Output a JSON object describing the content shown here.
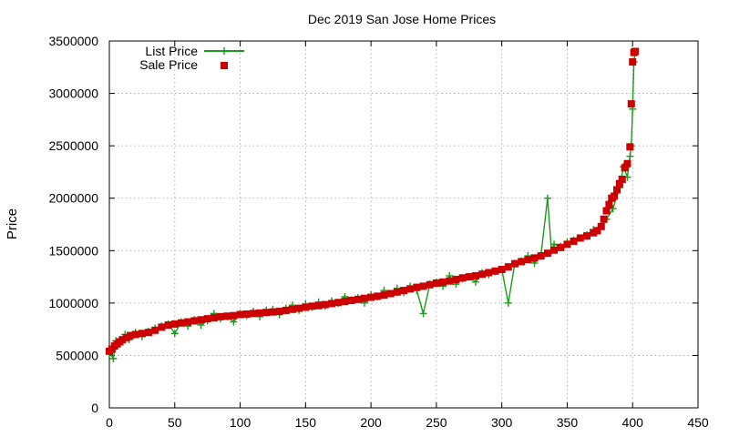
{
  "chart_data": {
    "type": "line",
    "title": "Dec 2019 San Jose Home Prices",
    "xlabel": "",
    "ylabel": "Price",
    "xlim": [
      0,
      450
    ],
    "ylim": [
      0,
      3500000
    ],
    "x_ticks": [
      0,
      50,
      100,
      150,
      200,
      250,
      300,
      350,
      400,
      450
    ],
    "y_ticks": [
      0,
      500000,
      1000000,
      1500000,
      2000000,
      2500000,
      3000000,
      3500000
    ],
    "grid": true,
    "legend_position": "top-left",
    "colors": {
      "list_price": "#1a9b1a",
      "sale_price": "#cc0000"
    },
    "series": [
      {
        "name": "List Price",
        "style": "line-with-plus-markers",
        "x": [
          0,
          3,
          5,
          8,
          12,
          15,
          20,
          25,
          30,
          35,
          40,
          45,
          50,
          55,
          60,
          65,
          70,
          75,
          80,
          85,
          90,
          95,
          100,
          105,
          110,
          115,
          120,
          125,
          130,
          135,
          140,
          145,
          150,
          155,
          160,
          165,
          170,
          175,
          180,
          185,
          190,
          195,
          200,
          205,
          210,
          215,
          220,
          225,
          230,
          235,
          240,
          245,
          250,
          255,
          260,
          265,
          270,
          275,
          280,
          285,
          290,
          295,
          300,
          305,
          310,
          315,
          320,
          325,
          330,
          335,
          338,
          340,
          345,
          350,
          355,
          360,
          365,
          370,
          375,
          380,
          385,
          390,
          393,
          396,
          398,
          399,
          400,
          401,
          402
        ],
        "values": [
          530000,
          470000,
          640000,
          620000,
          700000,
          650000,
          720000,
          680000,
          730000,
          760000,
          780000,
          800000,
          710000,
          820000,
          780000,
          840000,
          790000,
          830000,
          900000,
          850000,
          870000,
          820000,
          900000,
          880000,
          920000,
          870000,
          930000,
          940000,
          890000,
          950000,
          980000,
          930000,
          990000,
          960000,
          1010000,
          970000,
          1020000,
          1000000,
          1060000,
          1030000,
          1050000,
          1000000,
          1080000,
          1060000,
          1120000,
          1090000,
          1140000,
          1100000,
          1160000,
          1120000,
          900000,
          1180000,
          1200000,
          1160000,
          1260000,
          1180000,
          1230000,
          1250000,
          1200000,
          1290000,
          1270000,
          1300000,
          1320000,
          1000000,
          1380000,
          1400000,
          1450000,
          1380000,
          1460000,
          2000000,
          1500000,
          1560000,
          1540000,
          1580000,
          1600000,
          1620000,
          1650000,
          1700000,
          1720000,
          1800000,
          1900000,
          2100000,
          2300000,
          2200000,
          2400000,
          2500000,
          2850000,
          3300000,
          3400000
        ]
      },
      {
        "name": "Sale Price",
        "style": "square-markers",
        "x": [
          0,
          2,
          4,
          6,
          8,
          10,
          13,
          16,
          20,
          25,
          30,
          35,
          40,
          45,
          50,
          55,
          60,
          65,
          70,
          75,
          80,
          85,
          90,
          95,
          100,
          105,
          110,
          115,
          120,
          125,
          130,
          135,
          140,
          145,
          150,
          155,
          160,
          165,
          170,
          175,
          180,
          185,
          190,
          195,
          200,
          205,
          210,
          215,
          220,
          225,
          230,
          235,
          240,
          245,
          250,
          255,
          260,
          265,
          270,
          275,
          280,
          285,
          290,
          295,
          300,
          305,
          310,
          315,
          320,
          325,
          330,
          335,
          340,
          345,
          350,
          355,
          360,
          365,
          370,
          373,
          376,
          378,
          380,
          382,
          384,
          386,
          388,
          390,
          392,
          394,
          396,
          398,
          399,
          400,
          401,
          402
        ],
        "values": [
          540000,
          560000,
          590000,
          610000,
          630000,
          650000,
          670000,
          690000,
          700000,
          710000,
          720000,
          740000,
          770000,
          790000,
          800000,
          810000,
          820000,
          830000,
          840000,
          850000,
          860000,
          870000,
          875000,
          880000,
          890000,
          895000,
          900000,
          905000,
          910000,
          915000,
          920000,
          930000,
          940000,
          950000,
          960000,
          970000,
          975000,
          985000,
          995000,
          1005000,
          1015000,
          1025000,
          1035000,
          1045000,
          1055000,
          1065000,
          1075000,
          1090000,
          1105000,
          1120000,
          1135000,
          1150000,
          1160000,
          1175000,
          1190000,
          1200000,
          1210000,
          1225000,
          1240000,
          1250000,
          1260000,
          1275000,
          1290000,
          1305000,
          1320000,
          1345000,
          1375000,
          1395000,
          1415000,
          1430000,
          1450000,
          1475000,
          1505000,
          1530000,
          1560000,
          1590000,
          1620000,
          1640000,
          1670000,
          1690000,
          1730000,
          1800000,
          1880000,
          1940000,
          2000000,
          2020000,
          2080000,
          2140000,
          2180000,
          2290000,
          2330000,
          2490000,
          2900000,
          3300000,
          3390000,
          3400000
        ]
      }
    ]
  }
}
